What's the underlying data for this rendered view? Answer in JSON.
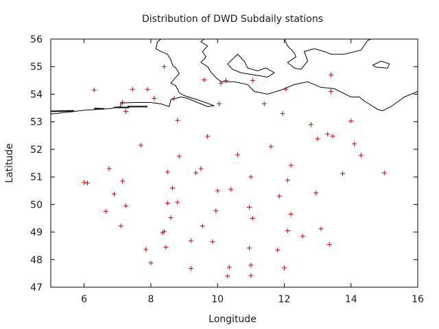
{
  "chart_data": {
    "type": "scatter",
    "title": "Distribution of DWD Subdaily stations",
    "xlabel": "Longitude",
    "ylabel": "Latitude",
    "xlim": [
      5,
      16
    ],
    "ylim": [
      47,
      56
    ],
    "xticks": [
      6,
      8,
      10,
      12,
      14,
      16
    ],
    "yticks": [
      47,
      48,
      49,
      50,
      51,
      52,
      53,
      54,
      55,
      56
    ],
    "grid": false,
    "marker": "+",
    "marker_color": "#d40000",
    "coastline_color": "#000000",
    "coastlines": [
      [
        [
          5.0,
          53.28
        ],
        [
          5.3,
          53.32
        ],
        [
          5.6,
          53.36
        ],
        [
          6.0,
          53.42
        ],
        [
          6.4,
          53.45
        ],
        [
          6.8,
          53.48
        ],
        [
          7.1,
          53.55
        ],
        [
          7.1,
          53.68
        ],
        [
          7.5,
          53.7
        ],
        [
          8.0,
          53.7
        ],
        [
          8.3,
          53.65
        ],
        [
          8.55,
          53.55
        ],
        [
          8.6,
          53.8
        ],
        [
          8.9,
          53.9
        ],
        [
          9.1,
          53.85
        ],
        [
          9.4,
          53.7
        ],
        [
          9.7,
          53.55
        ],
        [
          9.9,
          53.58
        ],
        [
          9.4,
          53.8
        ],
        [
          9.0,
          53.95
        ],
        [
          8.85,
          54.05
        ],
        [
          8.75,
          54.3
        ],
        [
          8.6,
          54.4
        ],
        [
          8.7,
          54.55
        ],
        [
          8.85,
          54.75
        ],
        [
          8.75,
          54.95
        ],
        [
          8.65,
          55.05
        ],
        [
          8.6,
          55.25
        ],
        [
          8.5,
          55.45
        ],
        [
          8.3,
          55.55
        ],
        [
          8.15,
          55.65
        ],
        [
          8.2,
          55.9
        ],
        [
          8.3,
          56.0
        ]
      ],
      [
        [
          9.6,
          56.0
        ],
        [
          9.5,
          55.9
        ],
        [
          9.7,
          55.75
        ],
        [
          9.55,
          55.55
        ],
        [
          9.65,
          55.35
        ],
        [
          9.5,
          55.15
        ],
        [
          9.7,
          55.0
        ],
        [
          9.8,
          54.8
        ],
        [
          9.95,
          54.6
        ],
        [
          10.1,
          54.45
        ],
        [
          10.5,
          54.45
        ],
        [
          10.9,
          54.35
        ],
        [
          11.1,
          54.1
        ],
        [
          11.5,
          54.0
        ],
        [
          11.9,
          54.15
        ],
        [
          12.3,
          54.35
        ],
        [
          12.7,
          54.45
        ],
        [
          13.1,
          54.25
        ],
        [
          13.5,
          54.2
        ],
        [
          14.0,
          53.9
        ],
        [
          14.25,
          53.9
        ],
        [
          14.4,
          53.75
        ],
        [
          14.6,
          53.6
        ],
        [
          14.8,
          53.45
        ],
        [
          14.95,
          53.4
        ]
      ],
      [
        [
          10.3,
          55.1
        ],
        [
          10.6,
          55.45
        ],
        [
          10.8,
          55.2
        ],
        [
          10.9,
          54.95
        ],
        [
          11.2,
          54.85
        ],
        [
          11.45,
          54.95
        ],
        [
          11.7,
          54.78
        ],
        [
          11.5,
          54.62
        ],
        [
          11.2,
          54.68
        ],
        [
          10.7,
          54.78
        ],
        [
          10.45,
          54.9
        ],
        [
          10.3,
          55.1
        ]
      ],
      [
        [
          12.0,
          56.0
        ],
        [
          12.1,
          55.75
        ],
        [
          12.3,
          55.5
        ],
        [
          12.35,
          55.35
        ],
        [
          12.1,
          55.15
        ],
        [
          12.3,
          54.95
        ],
        [
          12.5,
          54.9
        ],
        [
          12.7,
          55.2
        ],
        [
          12.6,
          55.55
        ],
        [
          12.9,
          55.65
        ],
        [
          13.2,
          55.55
        ],
        [
          13.4,
          55.45
        ],
        [
          13.8,
          55.45
        ],
        [
          14.3,
          55.6
        ],
        [
          14.5,
          55.95
        ],
        [
          14.6,
          56.0
        ]
      ],
      [
        [
          14.65,
          55.05
        ],
        [
          14.9,
          55.2
        ],
        [
          15.15,
          55.1
        ],
        [
          15.1,
          54.95
        ],
        [
          14.75,
          54.98
        ],
        [
          14.65,
          55.05
        ]
      ],
      [
        [
          14.95,
          53.4
        ],
        [
          15.2,
          53.55
        ],
        [
          15.6,
          53.9
        ],
        [
          16.0,
          54.1
        ],
        [
          16.0,
          54.2
        ]
      ]
    ],
    "islands": [
      [
        [
          5.0,
          53.38
        ],
        [
          5.7,
          53.4
        ]
      ],
      [
        [
          6.3,
          53.48
        ],
        [
          6.6,
          53.47
        ]
      ],
      [
        [
          6.9,
          53.52
        ],
        [
          7.35,
          53.52
        ]
      ],
      [
        [
          7.3,
          53.55
        ],
        [
          7.9,
          53.55
        ]
      ]
    ],
    "points": [
      [
        6.3,
        54.15
      ],
      [
        7.45,
        54.18
      ],
      [
        7.9,
        54.18
      ],
      [
        8.4,
        55.0
      ],
      [
        9.6,
        54.52
      ],
      [
        10.25,
        54.5
      ],
      [
        11.05,
        54.5
      ],
      [
        10.1,
        54.4
      ],
      [
        12.05,
        54.18
      ],
      [
        13.4,
        54.1
      ],
      [
        13.4,
        54.7
      ],
      [
        8.1,
        53.85
      ],
      [
        7.15,
        53.7
      ],
      [
        7.25,
        53.38
      ],
      [
        8.7,
        53.85
      ],
      [
        10.05,
        53.65
      ],
      [
        11.4,
        53.65
      ],
      [
        11.95,
        53.3
      ],
      [
        8.8,
        53.05
      ],
      [
        12.8,
        52.9
      ],
      [
        13.3,
        52.55
      ],
      [
        13.0,
        52.38
      ],
      [
        13.45,
        52.48
      ],
      [
        14.0,
        53.03
      ],
      [
        7.7,
        52.15
      ],
      [
        9.7,
        52.47
      ],
      [
        11.6,
        52.1
      ],
      [
        14.1,
        52.2
      ],
      [
        14.3,
        51.78
      ],
      [
        10.6,
        51.8
      ],
      [
        8.85,
        51.75
      ],
      [
        12.2,
        51.42
      ],
      [
        13.75,
        51.12
      ],
      [
        15.0,
        51.15
      ],
      [
        6.75,
        51.3
      ],
      [
        8.5,
        51.18
      ],
      [
        9.35,
        51.15
      ],
      [
        9.5,
        51.3
      ],
      [
        11.0,
        51.0
      ],
      [
        12.1,
        50.88
      ],
      [
        6.0,
        50.8
      ],
      [
        6.1,
        50.78
      ],
      [
        7.15,
        50.85
      ],
      [
        8.65,
        50.6
      ],
      [
        10.0,
        50.5
      ],
      [
        10.4,
        50.55
      ],
      [
        12.95,
        50.42
      ],
      [
        6.9,
        50.38
      ],
      [
        11.85,
        50.3
      ],
      [
        7.25,
        49.95
      ],
      [
        8.5,
        50.05
      ],
      [
        8.8,
        50.08
      ],
      [
        10.95,
        49.9
      ],
      [
        6.65,
        49.75
      ],
      [
        9.95,
        49.77
      ],
      [
        12.2,
        49.65
      ],
      [
        8.6,
        49.52
      ],
      [
        11.05,
        49.5
      ],
      [
        7.1,
        49.22
      ],
      [
        9.55,
        49.22
      ],
      [
        13.1,
        49.12
      ],
      [
        8.35,
        48.97
      ],
      [
        8.4,
        49.02
      ],
      [
        12.1,
        49.05
      ],
      [
        12.55,
        48.85
      ],
      [
        9.2,
        48.68
      ],
      [
        9.85,
        48.65
      ],
      [
        13.35,
        48.55
      ],
      [
        7.85,
        48.37
      ],
      [
        8.45,
        48.45
      ],
      [
        10.95,
        48.42
      ],
      [
        11.8,
        48.35
      ],
      [
        8.0,
        47.88
      ],
      [
        11.0,
        47.8
      ],
      [
        9.2,
        47.68
      ],
      [
        10.35,
        47.72
      ],
      [
        12.0,
        47.7
      ],
      [
        10.3,
        47.4
      ],
      [
        11.0,
        47.42
      ]
    ]
  }
}
